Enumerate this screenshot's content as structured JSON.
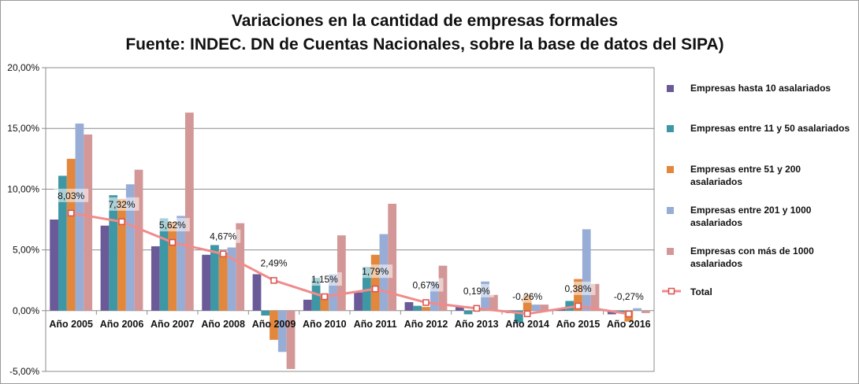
{
  "chart_data": {
    "type": "bar",
    "title": "Variaciones en la cantidad de empresas formales",
    "subtitle": "Fuente: INDEC. DN de Cuentas Nacionales, sobre la base de datos del SIPA)",
    "categories": [
      "Año 2005",
      "Año 2006",
      "Año 2007",
      "Año 2008",
      "Año 2009",
      "Año 2010",
      "Año 2011",
      "Año 2012",
      "Año 2013",
      "Año 2014",
      "Año 2015",
      "Año 2016"
    ],
    "ylim": [
      -5,
      20
    ],
    "yticks": [
      -5,
      0,
      5,
      10,
      15,
      20
    ],
    "ytick_labels": [
      "-5,00%",
      "0,00%",
      "5,00%",
      "10,00%",
      "15,00%",
      "20,00%"
    ],
    "grid": "horizontal",
    "legend_position": "right",
    "series": [
      {
        "name": "Empresas hasta 10 asalariados",
        "kind": "bar",
        "color": "#6a5a97",
        "legend_lines": [
          "Empresas hasta 10 asalariados"
        ],
        "values": [
          7.5,
          7.0,
          5.3,
          4.6,
          3.0,
          0.9,
          1.5,
          0.7,
          0.3,
          -0.2,
          0.2,
          -0.3
        ]
      },
      {
        "name": "Empresas entre 11 y 50 asalariados",
        "kind": "bar",
        "color": "#3e97a4",
        "legend_lines": [
          "Empresas entre 11 y 50 asalariados"
        ],
        "values": [
          11.1,
          9.5,
          7.6,
          5.4,
          -0.4,
          2.7,
          3.6,
          0.4,
          -0.3,
          -1.0,
          0.8,
          -0.2
        ]
      },
      {
        "name": "Empresas entre 51 y 200 asalariados",
        "kind": "bar",
        "color": "#e2873c",
        "legend_lines": [
          "Empresas entre 51 y 200",
          "asalariados"
        ],
        "values": [
          12.5,
          9.2,
          7.3,
          4.8,
          -2.4,
          1.4,
          4.6,
          0.3,
          0.0,
          1.3,
          2.6,
          -0.9
        ]
      },
      {
        "name": "Empresas entre 201 y 1000 asalariados",
        "kind": "bar",
        "color": "#98add6",
        "legend_lines": [
          "Empresas entre 201 y 1000",
          "asalariados"
        ],
        "values": [
          15.4,
          10.4,
          7.8,
          5.2,
          -3.4,
          3.0,
          6.3,
          2.4,
          2.4,
          0.5,
          6.7,
          0.2
        ]
      },
      {
        "name": "Empresas con más de 1000 asalariados",
        "kind": "bar",
        "color": "#d39797",
        "legend_lines": [
          "Empresas con más de 1000",
          "asalariados"
        ],
        "values": [
          14.5,
          11.6,
          16.3,
          7.2,
          -4.8,
          6.2,
          8.8,
          3.7,
          1.3,
          0.5,
          2.2,
          -0.2
        ]
      },
      {
        "name": "Total",
        "kind": "line",
        "color": "#f08b8b",
        "legend_lines": [
          "Total"
        ],
        "values": [
          8.03,
          7.32,
          5.62,
          4.67,
          2.49,
          1.15,
          1.79,
          0.67,
          0.19,
          -0.26,
          0.38,
          -0.27
        ],
        "labels": [
          "8,03%",
          "7,32%",
          "5,62%",
          "4,67%",
          "2,49%",
          "1,15%",
          "1,79%",
          "0,67%",
          "0,19%",
          "-0,26%",
          "0,38%",
          "-0,27%"
        ]
      }
    ]
  }
}
